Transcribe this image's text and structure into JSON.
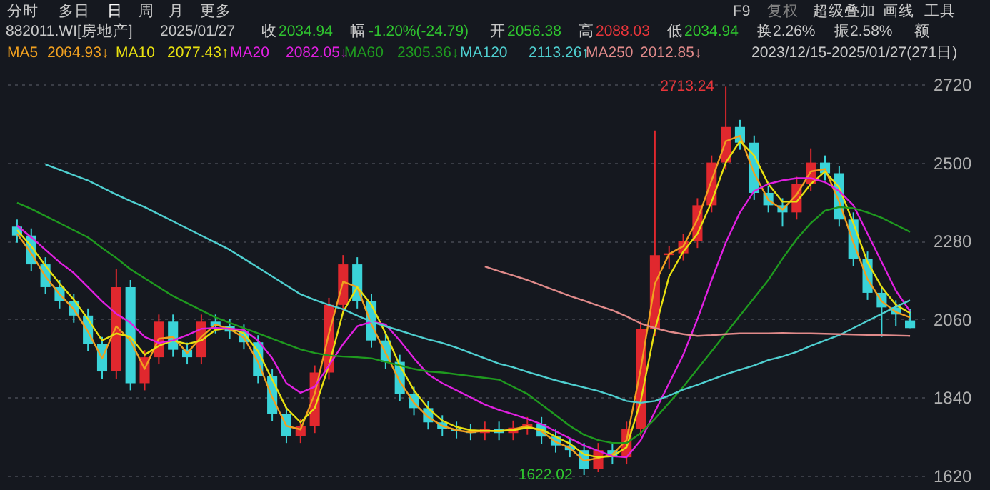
{
  "chart_data": {
    "type": "candlestick",
    "title": "882011.WI[房地产]",
    "categories": [
      null,
      null,
      null,
      null,
      null,
      null,
      null,
      null,
      null,
      null,
      null,
      null,
      null,
      null,
      null,
      null,
      null,
      null,
      null,
      null,
      null,
      null,
      null,
      null,
      null,
      null,
      null,
      null,
      null,
      null,
      null,
      null,
      null,
      null,
      null,
      null,
      null,
      null,
      null,
      null,
      null,
      null,
      null,
      null,
      null,
      null,
      null,
      null,
      null,
      null,
      null,
      null,
      null,
      null,
      null,
      null,
      null,
      null,
      null,
      null,
      null,
      null,
      null,
      null
    ],
    "ohlc": [
      [
        2320,
        2340,
        2275,
        2295
      ],
      [
        2295,
        2315,
        2194,
        2214
      ],
      [
        2214,
        2234,
        2130,
        2150
      ],
      [
        2150,
        2170,
        2090,
        2110
      ],
      [
        2110,
        2130,
        2050,
        2070
      ],
      [
        2070,
        2090,
        1970,
        1990
      ],
      [
        1990,
        2010,
        1893,
        1913
      ],
      [
        1913,
        2200,
        1893,
        2150
      ],
      [
        2150,
        2170,
        1860,
        1880
      ],
      [
        1880,
        1973,
        1860,
        1953
      ],
      [
        1953,
        2073,
        1933,
        2053
      ],
      [
        2053,
        2073,
        1954,
        1974
      ],
      [
        1974,
        1994,
        1933,
        1953
      ],
      [
        1953,
        2073,
        1933,
        2053
      ],
      [
        2053,
        2073,
        2020,
        2040
      ],
      [
        2040,
        2060,
        2005,
        2025
      ],
      [
        2025,
        2045,
        1975,
        1995
      ],
      [
        1995,
        2015,
        1880,
        1900
      ],
      [
        1900,
        1920,
        1773,
        1793
      ],
      [
        1793,
        1813,
        1712,
        1732
      ],
      [
        1732,
        1780,
        1712,
        1760
      ],
      [
        1760,
        1930,
        1740,
        1910
      ],
      [
        1910,
        2120,
        1890,
        2100
      ],
      [
        2100,
        2240,
        2080,
        2214
      ],
      [
        2214,
        2234,
        2090,
        2110
      ],
      [
        2110,
        2130,
        1980,
        2000
      ],
      [
        2000,
        2020,
        1920,
        1940
      ],
      [
        1940,
        1960,
        1830,
        1850
      ],
      [
        1850,
        1870,
        1790,
        1810
      ],
      [
        1810,
        1830,
        1750,
        1770
      ],
      [
        1770,
        1790,
        1732,
        1752
      ],
      [
        1752,
        1772,
        1725,
        1745
      ],
      [
        1745,
        1765,
        1720,
        1740
      ],
      [
        1740,
        1772,
        1720,
        1752
      ],
      [
        1752,
        1772,
        1720,
        1740
      ],
      [
        1740,
        1775,
        1720,
        1755
      ],
      [
        1755,
        1785,
        1735,
        1765
      ],
      [
        1765,
        1785,
        1710,
        1730
      ],
      [
        1730,
        1750,
        1685,
        1705
      ],
      [
        1705,
        1725,
        1672,
        1692
      ],
      [
        1692,
        1712,
        1622.02,
        1640
      ],
      [
        1640,
        1712,
        1630,
        1692
      ],
      [
        1692,
        1712,
        1652,
        1672
      ],
      [
        1672,
        1772,
        1652,
        1752
      ],
      [
        1752,
        2053,
        1732,
        2033
      ],
      [
        2033,
        2590,
        2013,
        2240
      ],
      [
        2240,
        2265,
        2200,
        2245
      ],
      [
        2245,
        2300,
        2225,
        2280
      ],
      [
        2280,
        2400,
        2260,
        2380
      ],
      [
        2380,
        2520,
        2360,
        2500
      ],
      [
        2500,
        2713.24,
        2480,
        2600
      ],
      [
        2600,
        2620,
        2536,
        2556
      ],
      [
        2556,
        2576,
        2395,
        2415
      ],
      [
        2415,
        2435,
        2360,
        2380
      ],
      [
        2380,
        2400,
        2320,
        2360
      ],
      [
        2360,
        2460,
        2340,
        2440
      ],
      [
        2440,
        2540,
        2420,
        2500
      ],
      [
        2500,
        2520,
        2450,
        2470
      ],
      [
        2470,
        2490,
        2320,
        2340
      ],
      [
        2340,
        2360,
        2210,
        2230
      ],
      [
        2230,
        2250,
        2114,
        2134
      ],
      [
        2134,
        2154,
        2010,
        2093
      ],
      [
        2093,
        2113,
        2040,
        2073
      ],
      [
        2056.38,
        2088.03,
        2034.94,
        2034.94
      ]
    ],
    "colors": [
      "#3ad3d8",
      "#3ad3d8",
      "#3ad3d8",
      "#3ad3d8",
      "#3ad3d8",
      "#3ad3d8",
      "#3ad3d8",
      "#e0282e",
      "#3ad3d8",
      "#e0282e",
      "#e0282e",
      "#3ad3d8",
      "#3ad3d8",
      "#e0282e",
      "#3ad3d8",
      "#3ad3d8",
      "#3ad3d8",
      "#3ad3d8",
      "#3ad3d8",
      "#3ad3d8",
      "#e0282e",
      "#e0282e",
      "#e0282e",
      "#e0282e",
      "#3ad3d8",
      "#3ad3d8",
      "#3ad3d8",
      "#3ad3d8",
      "#3ad3d8",
      "#3ad3d8",
      "#3ad3d8",
      "#3ad3d8",
      "#3ad3d8",
      "#e0282e",
      "#3ad3d8",
      "#e0282e",
      "#e0282e",
      "#3ad3d8",
      "#3ad3d8",
      "#3ad3d8",
      "#3ad3d8",
      "#e0282e",
      "#3ad3d8",
      "#e0282e",
      "#e0282e",
      "#e0282e",
      "#e0282e",
      "#e0282e",
      "#e0282e",
      "#e0282e",
      "#e0282e",
      "#3ad3d8",
      "#3ad3d8",
      "#3ad3d8",
      "#3ad3d8",
      "#e0282e",
      "#e0282e",
      "#3ad3d8",
      "#3ad3d8",
      "#3ad3d8",
      "#3ad3d8",
      "#3ad3d8",
      "#3ad3d8",
      "#3ad3d8"
    ],
    "series": [
      {
        "name": "MA5",
        "type": "line",
        "color": "#f0a020",
        "values": [
          2300,
          2245,
          2180,
          2130,
          2088,
          2025,
          1950,
          2040,
          2000,
          1920,
          2005,
          2010,
          1965,
          2010,
          2045,
          2032,
          2008,
          1940,
          1840,
          1760,
          1750,
          1850,
          2020,
          2165,
          2150,
          2045,
          1965,
          1885,
          1825,
          1785,
          1760,
          1748,
          1742,
          1747,
          1745,
          1750,
          1760,
          1745,
          1715,
          1698,
          1662,
          1670,
          1680,
          1720,
          1920,
          2160,
          2243,
          2265,
          2340,
          2450,
          2560,
          2575,
          2470,
          2395,
          2368,
          2410,
          2475,
          2482,
          2390,
          2275,
          2172,
          2110,
          2080,
          2065
        ]
      },
      {
        "name": "MA10",
        "type": "line",
        "color": "#e8e010",
        "values": [
          2310,
          2265,
          2210,
          2160,
          2115,
          2060,
          2000,
          2020,
          2010,
          1960,
          1985,
          2000,
          1990,
          2000,
          2030,
          2035,
          2020,
          1970,
          1890,
          1810,
          1770,
          1810,
          1930,
          2080,
          2150,
          2100,
          2020,
          1930,
          1860,
          1810,
          1775,
          1757,
          1748,
          1746,
          1746,
          1748,
          1755,
          1750,
          1730,
          1710,
          1680,
          1672,
          1675,
          1700,
          1830,
          2030,
          2180,
          2250,
          2300,
          2390,
          2500,
          2560,
          2520,
          2440,
          2390,
          2390,
          2440,
          2475,
          2430,
          2330,
          2220,
          2150,
          2100,
          2077
        ]
      },
      {
        "name": "MA20",
        "type": "line",
        "color": "#e020e0",
        "values": [
          2323,
          2290,
          2255,
          2220,
          2190,
          2150,
          2110,
          2075,
          2050,
          2010,
          1993,
          2000,
          2015,
          2033,
          2035,
          2033,
          2030,
          2000,
          1950,
          1880,
          1853,
          1870,
          1930,
          1990,
          2040,
          2053,
          2045,
          2000,
          1950,
          1905,
          1880,
          1860,
          1840,
          1820,
          1805,
          1793,
          1780,
          1765,
          1745,
          1725,
          1705,
          1690,
          1675,
          1672,
          1720,
          1800,
          1880,
          1960,
          2060,
          2170,
          2275,
          2360,
          2420,
          2440,
          2450,
          2456,
          2456,
          2445,
          2420,
          2380,
          2300,
          2220,
          2140,
          2082
        ]
      },
      {
        "name": "MA60",
        "type": "line",
        "color": "#1f9a1f",
        "values": [
          2387,
          2370,
          2350,
          2330,
          2310,
          2290,
          2260,
          2232,
          2200,
          2175,
          2150,
          2125,
          2105,
          2085,
          2065,
          2050,
          2035,
          2020,
          2005,
          1990,
          1975,
          1965,
          1958,
          1955,
          1953,
          1950,
          1940,
          1930,
          1920,
          1913,
          1910,
          1905,
          1900,
          1895,
          1890,
          1870,
          1850,
          1820,
          1790,
          1760,
          1735,
          1720,
          1712,
          1712,
          1740,
          1780,
          1825,
          1870,
          1920,
          1970,
          2020,
          2070,
          2120,
          2170,
          2230,
          2285,
          2330,
          2365,
          2375,
          2372,
          2360,
          2345,
          2325,
          2305
        ]
      },
      {
        "name": "MA120",
        "type": "line",
        "color": "#4fcfd0",
        "values": [
          null,
          null,
          2495,
          2480,
          2465,
          2450,
          2430,
          2410,
          2392,
          2375,
          2355,
          2335,
          2315,
          2295,
          2275,
          2255,
          2230,
          2205,
          2180,
          2155,
          2130,
          2114,
          2100,
          2088,
          2070,
          2053,
          2040,
          2028,
          2015,
          2003,
          1993,
          1980,
          1965,
          1950,
          1935,
          1925,
          1912,
          1900,
          1888,
          1878,
          1868,
          1858,
          1845,
          1830,
          1825,
          1830,
          1845,
          1862,
          1875,
          1890,
          1905,
          1918,
          1930,
          1945,
          1955,
          1968,
          1985,
          2000,
          2015,
          2035,
          2055,
          2075,
          2095,
          2113
        ]
      },
      {
        "name": "MA250",
        "type": "line",
        "color": "#e08a8a",
        "values": [
          null,
          null,
          null,
          null,
          null,
          null,
          null,
          null,
          null,
          null,
          null,
          null,
          null,
          null,
          null,
          null,
          null,
          null,
          null,
          null,
          null,
          null,
          null,
          null,
          null,
          null,
          null,
          null,
          null,
          null,
          null,
          null,
          null,
          2208,
          2195,
          2183,
          2170,
          2155,
          2140,
          2125,
          2112,
          2098,
          2085,
          2068,
          2048,
          2035,
          2025,
          2018,
          2013,
          2015,
          2018,
          2020,
          2020,
          2020,
          2021,
          2020,
          2020,
          2019,
          2018,
          2017,
          2016,
          2015,
          2014,
          2013
        ]
      }
    ],
    "ylim": [
      1620,
      2720
    ],
    "yticks": [
      1620,
      1840,
      2060,
      2280,
      2500,
      2720
    ],
    "grid": "y",
    "tick_labels": "y",
    "legend": "top left",
    "annotations": [
      "分时",
      "多日",
      "日",
      "周",
      "月",
      "更多",
      "F9",
      "复权",
      "超级叠加",
      "画线",
      "工具",
      "2025/01/27",
      "收",
      "2034.94",
      "幅",
      "-1.20%(-24.79)",
      "开",
      "2056.38",
      "高",
      "2088.03",
      "低",
      "2034.94",
      "换2.26%",
      "振2.58%",
      "额",
      "2064.93↓",
      "2077.43↑",
      "2082.05↓",
      "2305.36↓",
      "2113.26↑",
      "2012.85↓",
      "2023/12/15-2025/01/27(271日)",
      "2713.24",
      "1622.02"
    ]
  }
}
